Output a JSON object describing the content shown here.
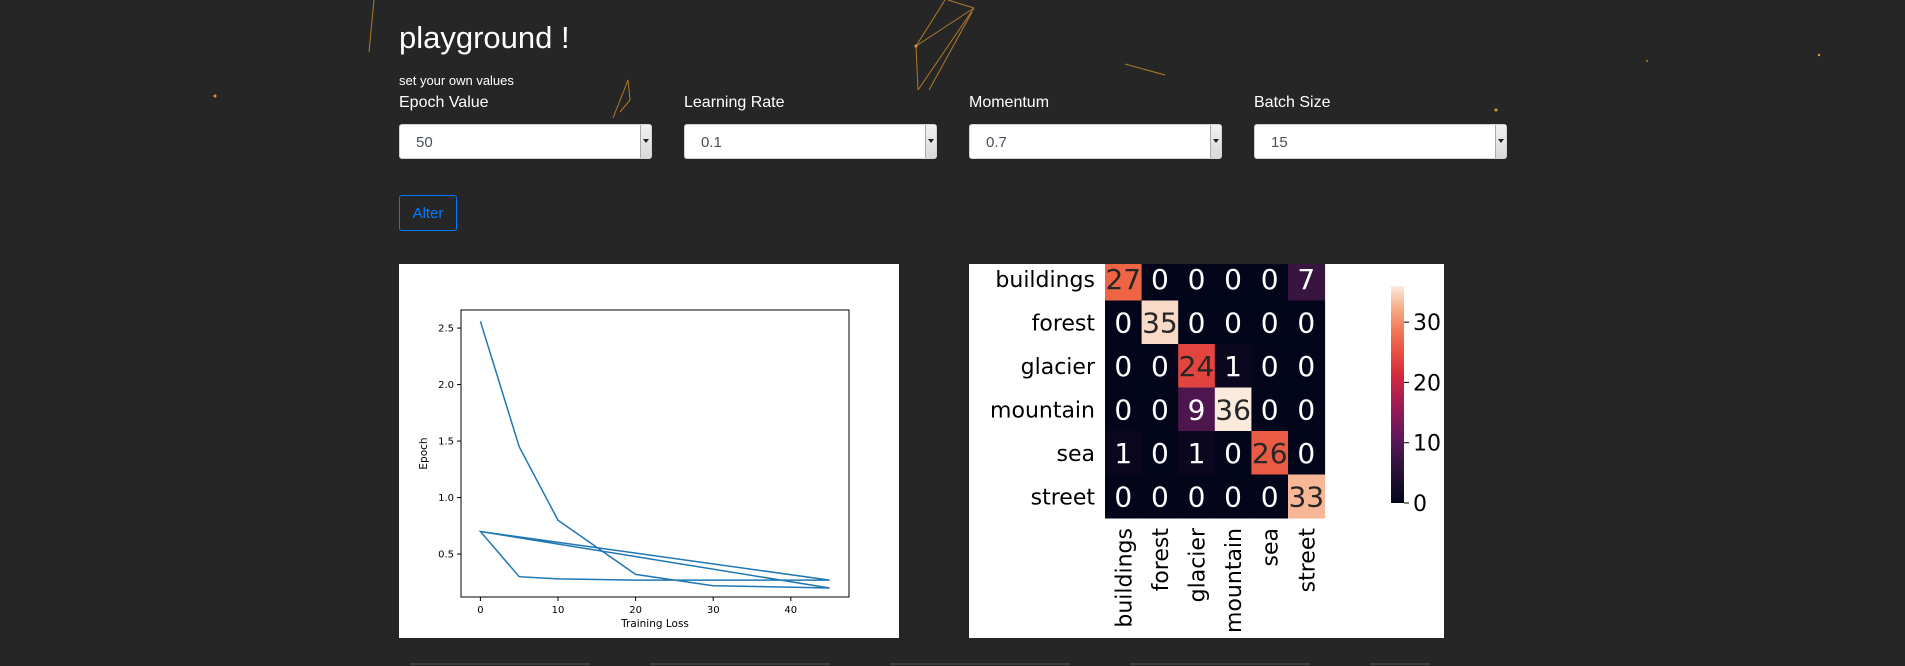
{
  "header": {
    "title": "playground !",
    "subtitle": "set your own values"
  },
  "controls": [
    {
      "label": "Epoch Value",
      "value": "50"
    },
    {
      "label": "Learning Rate",
      "value": "0.1"
    },
    {
      "label": "Momentum",
      "value": "0.7"
    },
    {
      "label": "Batch Size",
      "value": "15"
    }
  ],
  "alter_button": {
    "label": "Alter"
  },
  "colors": {
    "page_background": "#262626",
    "accent": "#007bff",
    "line_series": "#1f77b4",
    "decor_lines": "#c88a2a"
  },
  "chart_data": [
    {
      "type": "line",
      "title": "",
      "xlabel": "Training Loss",
      "ylabel": "Epoch",
      "xlim": [
        -2.5,
        47.5
      ],
      "ylim": [
        0.12,
        2.66
      ],
      "xticks": [
        0,
        10,
        20,
        30,
        40
      ],
      "yticks": [
        0.5,
        1.0,
        1.5,
        2.0,
        2.5
      ],
      "x": [
        0,
        5,
        10,
        20,
        30,
        45,
        0,
        5,
        10,
        20,
        30,
        45,
        0,
        45
      ],
      "y": [
        2.56,
        1.45,
        0.8,
        0.32,
        0.22,
        0.2,
        0.7,
        0.3,
        0.28,
        0.27,
        0.27,
        0.27,
        0.7,
        0.2
      ],
      "grid": false
    },
    {
      "type": "heatmap",
      "rows": [
        "buildings",
        "forest",
        "glacier",
        "mountain",
        "sea",
        "street"
      ],
      "columns": [
        "buildings",
        "forest",
        "glacier",
        "mountain",
        "sea",
        "street"
      ],
      "values": [
        [
          27,
          0,
          0,
          0,
          0,
          7
        ],
        [
          0,
          35,
          0,
          0,
          0,
          0
        ],
        [
          0,
          0,
          24,
          1,
          0,
          0
        ],
        [
          0,
          0,
          9,
          36,
          0,
          0
        ],
        [
          1,
          0,
          1,
          0,
          26,
          0
        ],
        [
          0,
          0,
          0,
          0,
          0,
          33
        ]
      ],
      "colorbar_ticks": [
        0,
        10,
        20,
        30
      ],
      "colorbar_range": [
        0,
        36
      ],
      "colormap": "rocket"
    }
  ]
}
